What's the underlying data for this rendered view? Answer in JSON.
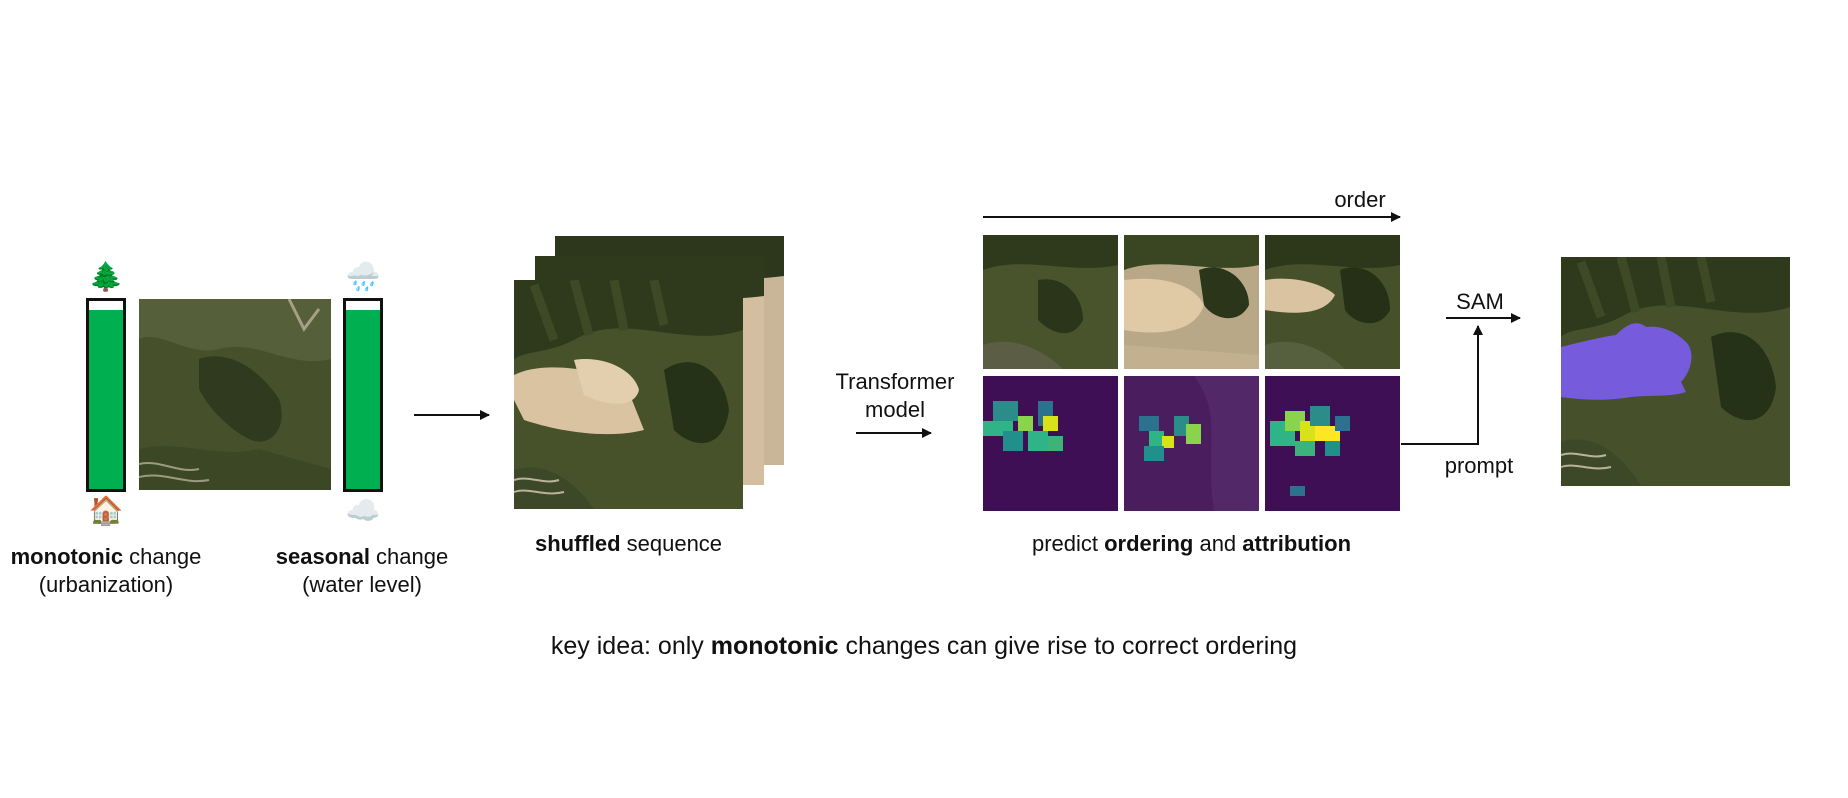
{
  "left_panel": {
    "monotonic": {
      "bold": "monotonic",
      "rest": " change",
      "sub": "(urbanization)",
      "top_icon": "tree-icon",
      "bottom_icon": "house-icon",
      "fill_fraction": 0.95
    },
    "seasonal": {
      "bold": "seasonal",
      "rest": " change",
      "sub": "(water level)",
      "top_icon": "rain-cloud-icon",
      "bottom_icon": "cloud-icon",
      "fill_fraction": 0.95
    }
  },
  "shuffled": {
    "bold": "shuffled",
    "rest": " sequence"
  },
  "model": {
    "line1": "Transformer",
    "line2": "model"
  },
  "prediction": {
    "order_label": "order",
    "caption_pre": "predict ",
    "caption_b1": "ordering",
    "caption_mid": " and ",
    "caption_b2": "attribution"
  },
  "sam": {
    "label": "SAM",
    "prompt_label": "prompt"
  },
  "key_idea": {
    "pre": "key idea: only ",
    "bold": "monotonic",
    "post": " changes can give rise to correct ordering"
  },
  "colors": {
    "bar_fill": "#00b050",
    "mask": "#7b5cf0",
    "heatmap_bg": "#3f0f56"
  }
}
